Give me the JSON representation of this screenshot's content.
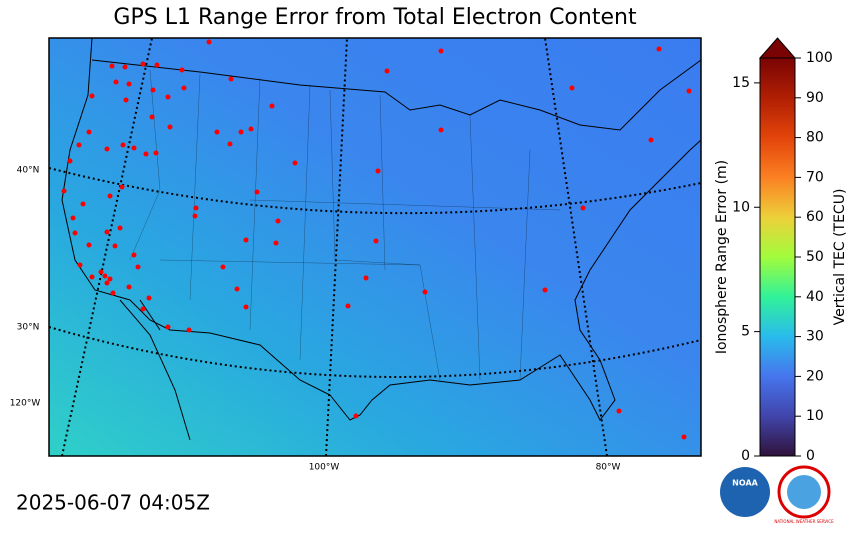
{
  "title": "GPS L1 Range Error from Total Electron Content",
  "timestamp": "2025-06-07 04:05Z",
  "map": {
    "lat_labels": [
      "40°N",
      "30°N"
    ],
    "lon_labels": [
      "120°W",
      "100°W",
      "80°W"
    ]
  },
  "colorbar": {
    "left_label": "Ionosphere Range Error (m)",
    "right_label": "Vertical TEC (TECU)",
    "left_lim": [
      0,
      16
    ],
    "left_ticks": [
      0,
      5,
      10,
      15
    ],
    "right_lim": [
      0,
      100
    ],
    "right_ticks": [
      0,
      10,
      20,
      30,
      40,
      50,
      60,
      70,
      80,
      90,
      100
    ]
  },
  "logos": {
    "noaa": "NOAA",
    "nws": "NATIONAL WEATHER SERVICE"
  }
}
